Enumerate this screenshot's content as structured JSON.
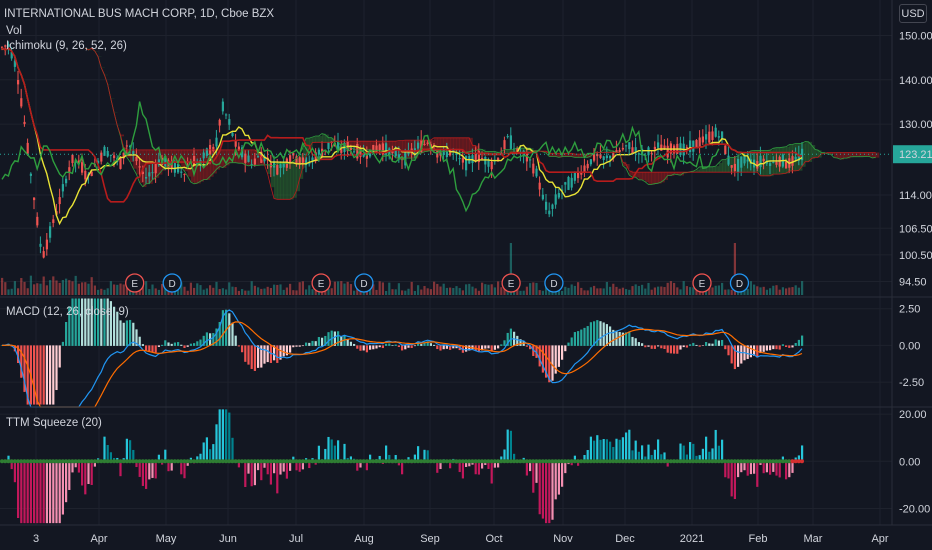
{
  "header": {
    "symbol_title": "INTERNATIONAL BUS MACH CORP, 1D, Cboe BZX",
    "vol_label": "Vol",
    "ichimoku_label": "Ichimoku (9, 26, 52, 26)",
    "currency_button": "USD"
  },
  "last_price_label": "123.21",
  "colors": {
    "background": "#131722",
    "grid": "#1e222d",
    "up": "#26a69a",
    "down": "#ef5350",
    "conversion_line": "#e8e235",
    "base_line": "#b71c1c",
    "lagging_span": "#2e9e3e",
    "cloud_bull": "#2e7d32",
    "cloud_bear": "#b71c1c",
    "macd_line": "#2196f3",
    "signal_line": "#ff6d00",
    "squeeze_on": "#d32f2f",
    "squeeze_off": "#2e7d32",
    "momentum_pos": "#26a69a",
    "momentum_neg": "#c2185b",
    "price_badge": "#26a69a"
  },
  "chart_data": [
    {
      "type": "candlestick",
      "title": "INTERNATIONAL BUS MACH CORP, 1D, Cboe BZX",
      "y_ticks": [
        "150.00",
        "140.00",
        "130.00",
        "114.00",
        "106.50",
        "100.50",
        "94.50"
      ],
      "y_tick_values": [
        150,
        140,
        130,
        114,
        106.5,
        100.5,
        94.5
      ],
      "ylim": [
        91,
        158
      ],
      "last_price": 123.21,
      "x_ticks": [
        "3",
        "Apr",
        "May",
        "Jun",
        "Jul",
        "Aug",
        "Sep",
        "Oct",
        "Nov",
        "Dec",
        "2021",
        "Feb",
        "Mar",
        "Apr"
      ],
      "price_path": [
        [
          0,
          147
        ],
        [
          8,
          148
        ],
        [
          16,
          143
        ],
        [
          24,
          131
        ],
        [
          30,
          120
        ],
        [
          36,
          110
        ],
        [
          42,
          100
        ],
        [
          48,
          104
        ],
        [
          56,
          110
        ],
        [
          64,
          116
        ],
        [
          72,
          122
        ],
        [
          80,
          121
        ],
        [
          88,
          118
        ],
        [
          96,
          121
        ],
        [
          104,
          124
        ],
        [
          112,
          123
        ],
        [
          120,
          121
        ],
        [
          128,
          126
        ],
        [
          136,
          122
        ],
        [
          144,
          118
        ],
        [
          152,
          119
        ],
        [
          160,
          122
        ],
        [
          168,
          121
        ],
        [
          176,
          120
        ],
        [
          184,
          119
        ],
        [
          192,
          122
        ],
        [
          200,
          121
        ],
        [
          208,
          124
        ],
        [
          216,
          125
        ],
        [
          222,
          134
        ],
        [
          228,
          131
        ],
        [
          236,
          125
        ],
        [
          244,
          123
        ],
        [
          252,
          121
        ],
        [
          260,
          123
        ],
        [
          268,
          122
        ],
        [
          276,
          120
        ],
        [
          284,
          121
        ],
        [
          292,
          123
        ],
        [
          300,
          122
        ],
        [
          308,
          121
        ],
        [
          316,
          123
        ],
        [
          324,
          124
        ],
        [
          332,
          126
        ],
        [
          340,
          124
        ],
        [
          348,
          125
        ],
        [
          356,
          124
        ],
        [
          364,
          123
        ],
        [
          372,
          124
        ],
        [
          380,
          125
        ],
        [
          388,
          124
        ],
        [
          396,
          123
        ],
        [
          404,
          122
        ],
        [
          412,
          124
        ],
        [
          420,
          125
        ],
        [
          428,
          126
        ],
        [
          436,
          124
        ],
        [
          444,
          123
        ],
        [
          452,
          124
        ],
        [
          460,
          122
        ],
        [
          468,
          121
        ],
        [
          476,
          123
        ],
        [
          484,
          122
        ],
        [
          492,
          121
        ],
        [
          500,
          123
        ],
        [
          508,
          127
        ],
        [
          516,
          124
        ],
        [
          524,
          123
        ],
        [
          532,
          121
        ],
        [
          538,
          118
        ],
        [
          544,
          112
        ],
        [
          550,
          110
        ],
        [
          556,
          113
        ],
        [
          564,
          116
        ],
        [
          572,
          117
        ],
        [
          580,
          119
        ],
        [
          588,
          121
        ],
        [
          596,
          123
        ],
        [
          604,
          122
        ],
        [
          612,
          123
        ],
        [
          620,
          124
        ],
        [
          628,
          125
        ],
        [
          636,
          124
        ],
        [
          644,
          123
        ],
        [
          652,
          124
        ],
        [
          660,
          125
        ],
        [
          668,
          124
        ],
        [
          676,
          125
        ],
        [
          684,
          124
        ],
        [
          692,
          125
        ],
        [
          700,
          126
        ],
        [
          708,
          127
        ],
        [
          716,
          128
        ],
        [
          722,
          127
        ],
        [
          728,
          122
        ],
        [
          734,
          120
        ],
        [
          740,
          121
        ],
        [
          748,
          122
        ],
        [
          756,
          121
        ],
        [
          764,
          122
        ],
        [
          772,
          121
        ],
        [
          780,
          122
        ],
        [
          788,
          121
        ],
        [
          796,
          122
        ],
        [
          802,
          123
        ]
      ],
      "events": [
        {
          "label": "E",
          "x_frac": 0.151
        },
        {
          "label": "D",
          "x_frac": 0.193
        },
        {
          "label": "E",
          "x_frac": 0.36
        },
        {
          "label": "D",
          "x_frac": 0.408
        },
        {
          "label": "E",
          "x_frac": 0.573
        },
        {
          "label": "D",
          "x_frac": 0.621
        },
        {
          "label": "E",
          "x_frac": 0.787
        },
        {
          "label": "D",
          "x_frac": 0.829
        }
      ]
    },
    {
      "type": "histogram_with_lines",
      "title": "MACD (12, 26, close, 9)",
      "y_ticks": [
        "2.50",
        "0.00",
        "-2.50"
      ],
      "y_tick_values": [
        2.5,
        0,
        -2.5
      ],
      "ylim": [
        -4.2,
        3.3
      ]
    },
    {
      "type": "histogram",
      "title": "TTM Squeeze (20)",
      "y_ticks": [
        "20.00",
        "0.00",
        "-20.00"
      ],
      "y_tick_values": [
        20,
        0,
        -20
      ],
      "ylim": [
        -27,
        23
      ]
    }
  ]
}
